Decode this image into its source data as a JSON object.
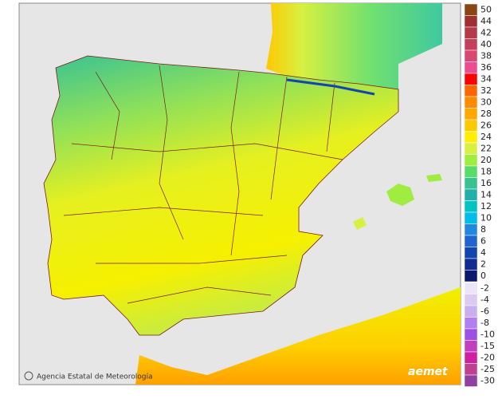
{
  "footer": {
    "credit": "Agencia Estatal de Meteorología",
    "logo": "aemet"
  },
  "legend": {
    "entries": [
      {
        "label": "50",
        "color": "#8b4513"
      },
      {
        "label": "44",
        "color": "#a03030"
      },
      {
        "label": "42",
        "color": "#b33a48"
      },
      {
        "label": "40",
        "color": "#c4405a"
      },
      {
        "label": "38",
        "color": "#d84870"
      },
      {
        "label": "36",
        "color": "#ee4c90"
      },
      {
        "label": "34",
        "color": "#ff0000"
      },
      {
        "label": "32",
        "color": "#ff6600"
      },
      {
        "label": "30",
        "color": "#ff8c00"
      },
      {
        "label": "28",
        "color": "#ffa800"
      },
      {
        "label": "26",
        "color": "#ffc800"
      },
      {
        "label": "24",
        "color": "#ffee00"
      },
      {
        "label": "22",
        "color": "#d8f040"
      },
      {
        "label": "20",
        "color": "#a0ec40"
      },
      {
        "label": "18",
        "color": "#58dc68"
      },
      {
        "label": "16",
        "color": "#38c294"
      },
      {
        "label": "14",
        "color": "#20b0a8"
      },
      {
        "label": "12",
        "color": "#00c4c4"
      },
      {
        "label": "10",
        "color": "#00bce8"
      },
      {
        "label": "8",
        "color": "#2088e0"
      },
      {
        "label": "6",
        "color": "#2064d0"
      },
      {
        "label": "4",
        "color": "#1444b0"
      },
      {
        "label": "2",
        "color": "#102c90"
      },
      {
        "label": "0",
        "color": "#0c1870"
      }
    ],
    "negative_entries": [
      {
        "label": "-2",
        "color": "#ece4f8"
      },
      {
        "label": "-4",
        "color": "#dccaf2"
      },
      {
        "label": "-6",
        "color": "#c8b0f0"
      },
      {
        "label": "-8",
        "color": "#b080f0"
      },
      {
        "label": "-10",
        "color": "#9c50e4"
      },
      {
        "label": "-15",
        "color": "#c040c0"
      },
      {
        "label": "-20",
        "color": "#d020a0"
      },
      {
        "label": "-25",
        "color": "#c04090"
      },
      {
        "label": "-30",
        "color": "#9040a0"
      }
    ]
  }
}
